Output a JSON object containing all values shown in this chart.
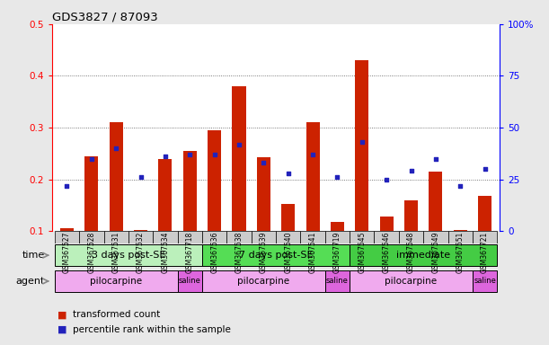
{
  "title": "GDS3827 / 87093",
  "samples": [
    "GSM367527",
    "GSM367528",
    "GSM367531",
    "GSM367532",
    "GSM367534",
    "GSM367718",
    "GSM367536",
    "GSM367538",
    "GSM367539",
    "GSM367540",
    "GSM367541",
    "GSM367719",
    "GSM367545",
    "GSM367546",
    "GSM367548",
    "GSM367549",
    "GSM367551",
    "GSM367721"
  ],
  "red_values": [
    0.105,
    0.245,
    0.31,
    0.103,
    0.24,
    0.255,
    0.295,
    0.38,
    0.243,
    0.153,
    0.31,
    0.118,
    0.43,
    0.128,
    0.16,
    0.215,
    0.103,
    0.168
  ],
  "blue_pct": [
    22,
    35,
    40,
    26,
    36,
    37,
    37,
    42,
    33,
    28,
    37,
    26,
    43,
    25,
    29,
    35,
    22,
    30
  ],
  "ylim_left": [
    0.1,
    0.5
  ],
  "ylim_right": [
    0,
    100
  ],
  "yticks_left": [
    0.1,
    0.2,
    0.3,
    0.4,
    0.5
  ],
  "yticks_right": [
    0,
    25,
    50,
    75,
    100
  ],
  "time_groups": [
    {
      "label": "3 days post-SE",
      "start": 0,
      "end": 5,
      "color": "#bbf0bb"
    },
    {
      "label": "7 days post-SE",
      "start": 6,
      "end": 11,
      "color": "#55dd55"
    },
    {
      "label": "immediate",
      "start": 12,
      "end": 17,
      "color": "#44cc44"
    }
  ],
  "agent_groups": [
    {
      "label": "pilocarpine",
      "start": 0,
      "end": 4,
      "color": "#f0aaee"
    },
    {
      "label": "saline",
      "start": 5,
      "end": 5,
      "color": "#dd66dd"
    },
    {
      "label": "pilocarpine",
      "start": 6,
      "end": 10,
      "color": "#f0aaee"
    },
    {
      "label": "saline",
      "start": 11,
      "end": 11,
      "color": "#dd66dd"
    },
    {
      "label": "pilocarpine",
      "start": 12,
      "end": 16,
      "color": "#f0aaee"
    },
    {
      "label": "saline",
      "start": 17,
      "end": 17,
      "color": "#dd66dd"
    }
  ],
  "bar_color_red": "#cc2200",
  "bar_color_blue": "#2222bb",
  "bar_width": 0.55,
  "blue_marker_size": 6,
  "grid_color": "#555555",
  "background_color": "#e8e8e8",
  "plot_bg": "#ffffff",
  "tick_box_color": "#cccccc",
  "time_label": "time",
  "agent_label": "agent",
  "legend_red": "transformed count",
  "legend_blue": "percentile rank within the sample"
}
